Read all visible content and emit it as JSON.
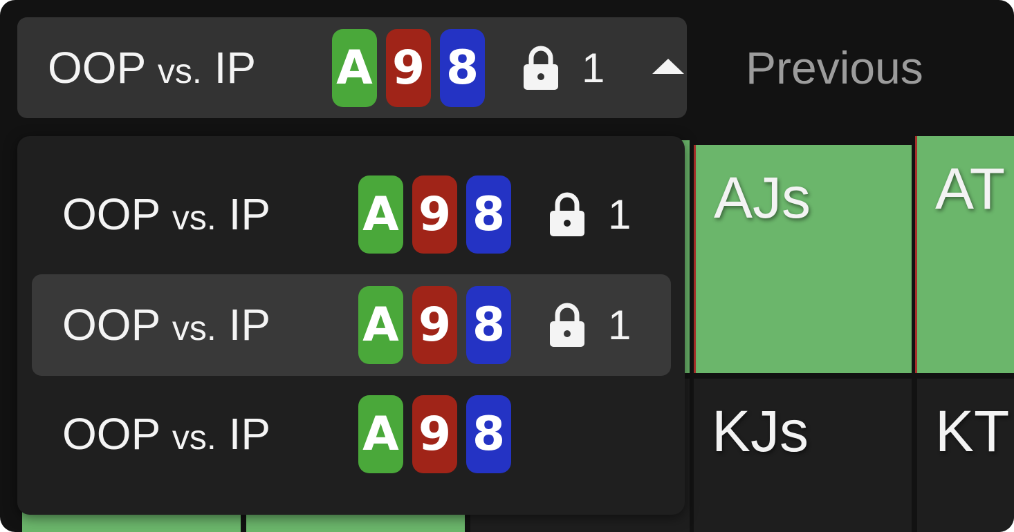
{
  "header": {
    "title": "OOP",
    "vs": "vs.",
    "opponent": "IP",
    "cards": [
      {
        "rank": "A",
        "color": "#4aa83a"
      },
      {
        "rank": "9",
        "color": "#a02418"
      },
      {
        "rank": "8",
        "color": "#2433c4"
      }
    ],
    "lock_icon": "lock-icon",
    "lock_count": "1",
    "caret_icon": "caret-up-icon"
  },
  "previous_label": "Previous",
  "dropdown": {
    "items": [
      {
        "title": "OOP",
        "vs": "vs.",
        "opponent": "IP",
        "cards": [
          "A",
          "9",
          "8"
        ],
        "lock_count": "1",
        "selected": false
      },
      {
        "title": "OOP",
        "vs": "vs.",
        "opponent": "IP",
        "cards": [
          "A",
          "9",
          "8"
        ],
        "lock_count": "1",
        "selected": true
      },
      {
        "title": "OOP",
        "vs": "vs.",
        "opponent": "IP",
        "cards": [
          "A",
          "9",
          "8"
        ],
        "selected": false
      }
    ]
  },
  "grid": {
    "cells": [
      {
        "label": "AJs",
        "color": "#6bb66b"
      },
      {
        "label": "AT",
        "color": "#6bb66b"
      },
      {
        "label": "KJs",
        "color": "#1e1e1e"
      },
      {
        "label": "KT",
        "color": "#1e1e1e"
      }
    ]
  }
}
